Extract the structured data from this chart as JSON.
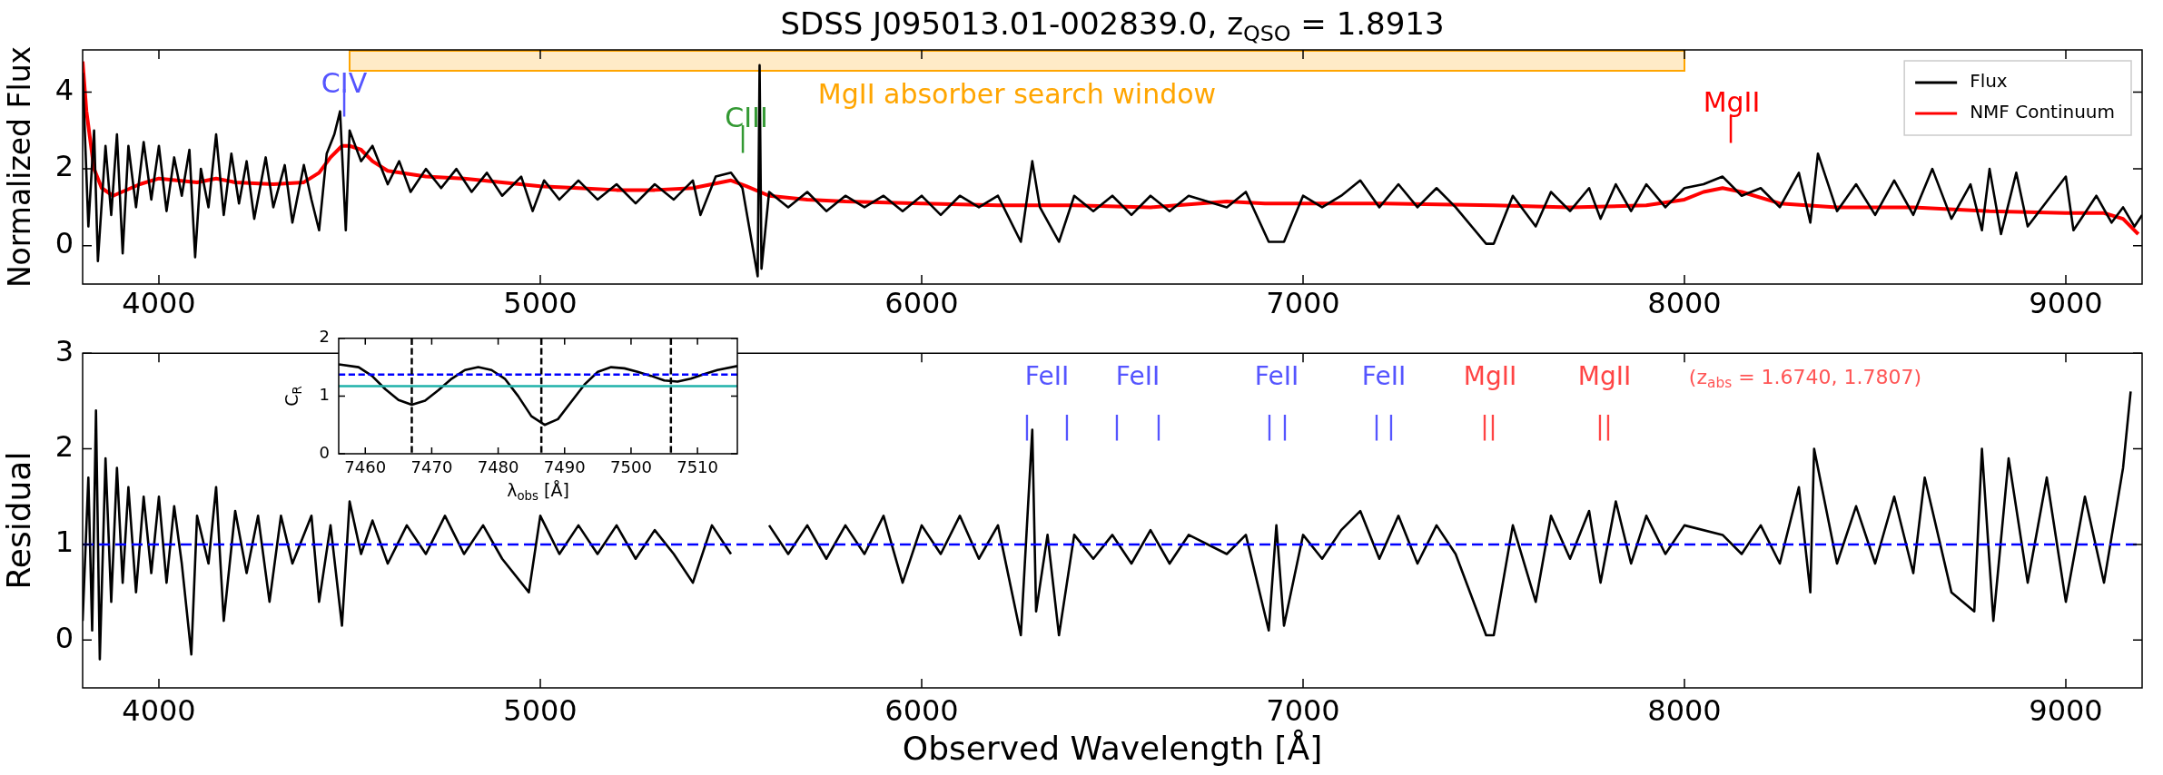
{
  "chart_data": [
    {
      "type": "line",
      "title": "SDSS J095013.01-002839.0, z$_{QSO}$ = 1.8913",
      "ylabel": "Normalized Flux",
      "xlim": [
        3800,
        9200
      ],
      "xticks": [
        4000,
        5000,
        6000,
        7000,
        8000,
        9000
      ],
      "ylim": [
        -1,
        5.1
      ],
      "yticks": [
        0,
        2,
        4
      ],
      "legend": "top right",
      "grid": false,
      "series": [
        {
          "name": "Flux",
          "color": "#000000",
          "x": [
            3800,
            3815,
            3830,
            3840,
            3860,
            3875,
            3890,
            3905,
            3920,
            3940,
            3960,
            3980,
            4000,
            4020,
            4040,
            4060,
            4080,
            4095,
            4110,
            4130,
            4150,
            4170,
            4190,
            4210,
            4230,
            4250,
            4280,
            4300,
            4330,
            4350,
            4380,
            4400,
            4420,
            4440,
            4460,
            4475,
            4490,
            4500,
            4530,
            4560,
            4600,
            4630,
            4660,
            4700,
            4740,
            4780,
            4820,
            4860,
            4900,
            4950,
            4980,
            5010,
            5050,
            5100,
            5150,
            5200,
            5250,
            5300,
            5350,
            5400,
            5420,
            5460,
            5500,
            5530,
            5570,
            5575,
            5580,
            5600,
            5650,
            5700,
            5750,
            5800,
            5850,
            5900,
            5950,
            6000,
            6050,
            6100,
            6150,
            6200,
            6260,
            6290,
            6310,
            6360,
            6400,
            6450,
            6500,
            6550,
            6600,
            6650,
            6700,
            6800,
            6850,
            6910,
            6950,
            7000,
            7050,
            7100,
            7150,
            7200,
            7250,
            7300,
            7350,
            7400,
            7480,
            7500,
            7550,
            7610,
            7650,
            7700,
            7750,
            7780,
            7820,
            7860,
            7900,
            7950,
            8000,
            8050,
            8100,
            8150,
            8200,
            8250,
            8300,
            8330,
            8350,
            8400,
            8450,
            8500,
            8550,
            8600,
            8650,
            8700,
            8750,
            8780,
            8800,
            8830,
            8870,
            8900,
            9000,
            9020,
            9080,
            9120,
            9150,
            9180,
            9200
          ],
          "values": [
            4.5,
            0.5,
            3.0,
            -0.4,
            2.6,
            0.8,
            2.9,
            -0.2,
            2.6,
            1.0,
            2.7,
            1.2,
            2.6,
            0.9,
            2.3,
            1.3,
            2.5,
            -0.3,
            2.0,
            1.0,
            2.9,
            0.8,
            2.4,
            1.1,
            2.2,
            0.7,
            2.3,
            1.0,
            2.1,
            0.6,
            2.1,
            1.2,
            0.4,
            2.4,
            2.9,
            3.5,
            0.4,
            3.0,
            2.2,
            2.6,
            1.6,
            2.2,
            1.4,
            2.0,
            1.5,
            2.0,
            1.4,
            1.9,
            1.3,
            1.8,
            0.9,
            1.7,
            1.2,
            1.7,
            1.2,
            1.6,
            1.1,
            1.6,
            1.2,
            1.7,
            0.8,
            1.8,
            1.9,
            1.5,
            -0.8,
            4.7,
            -0.6,
            1.4,
            1.0,
            1.4,
            0.9,
            1.3,
            1.0,
            1.3,
            0.9,
            1.3,
            0.8,
            1.3,
            1.0,
            1.3,
            0.1,
            2.2,
            1.0,
            0.1,
            1.3,
            0.9,
            1.3,
            0.8,
            1.3,
            0.9,
            1.3,
            1.0,
            1.4,
            0.1,
            0.1,
            1.3,
            1.0,
            1.3,
            1.7,
            1.0,
            1.6,
            1.0,
            1.5,
            1.0,
            0.05,
            0.05,
            1.3,
            0.5,
            1.4,
            0.9,
            1.5,
            0.7,
            1.6,
            0.9,
            1.6,
            1.0,
            1.5,
            1.6,
            1.8,
            1.3,
            1.5,
            1.0,
            1.9,
            0.6,
            2.4,
            0.9,
            1.6,
            0.8,
            1.7,
            0.8,
            2.0,
            0.7,
            1.6,
            0.4,
            2.0,
            0.3,
            1.9,
            0.5,
            1.8,
            0.4,
            1.3,
            0.6,
            1.0,
            0.5,
            0.8
          ]
        },
        {
          "name": "NMF Continuum",
          "color": "#ff0000",
          "x": [
            3800,
            3810,
            3830,
            3850,
            3880,
            3950,
            4000,
            4100,
            4150,
            4200,
            4300,
            4380,
            4420,
            4450,
            4480,
            4500,
            4530,
            4560,
            4600,
            4700,
            4800,
            4900,
            5000,
            5100,
            5200,
            5300,
            5400,
            5450,
            5500,
            5540,
            5600,
            5700,
            5800,
            6000,
            6200,
            6400,
            6600,
            6800,
            6900,
            7000,
            7200,
            7500,
            7700,
            7900,
            8000,
            8050,
            8100,
            8150,
            8250,
            8400,
            8600,
            8800,
            9000,
            9100,
            9150,
            9190
          ],
          "values": [
            4.8,
            3.5,
            2.0,
            1.5,
            1.3,
            1.6,
            1.75,
            1.65,
            1.75,
            1.65,
            1.6,
            1.65,
            1.9,
            2.3,
            2.6,
            2.6,
            2.5,
            2.2,
            1.95,
            1.8,
            1.75,
            1.65,
            1.55,
            1.5,
            1.45,
            1.45,
            1.5,
            1.6,
            1.7,
            1.55,
            1.3,
            1.2,
            1.15,
            1.1,
            1.05,
            1.05,
            1.0,
            1.15,
            1.1,
            1.1,
            1.1,
            1.05,
            1.0,
            1.05,
            1.2,
            1.4,
            1.5,
            1.4,
            1.1,
            1.0,
            1.0,
            0.9,
            0.85,
            0.85,
            0.7,
            0.3
          ]
        }
      ],
      "bands": [
        {
          "axis": "x",
          "from": 4500,
          "to": 8000,
          "label": "MgII absorber search window",
          "color": "#ffa500"
        }
      ],
      "annotations": [
        "CIV",
        "|",
        "CIII",
        "|",
        "MgII",
        "|"
      ]
    },
    {
      "type": "line",
      "xlabel": "Observed Wavelength [Å]",
      "ylabel": "Residual",
      "xlim": [
        3800,
        9200
      ],
      "xticks": [
        4000,
        5000,
        6000,
        7000,
        8000,
        9000
      ],
      "ylim": [
        -0.5,
        3
      ],
      "yticks": [
        0,
        1,
        2,
        3
      ],
      "grid": false,
      "series": [
        {
          "color": "#000000",
          "x": [
            3800,
            3815,
            3825,
            3835,
            3845,
            3860,
            3875,
            3890,
            3905,
            3920,
            3940,
            3960,
            3980,
            4000,
            4020,
            4040,
            4060,
            4085,
            4100,
            4130,
            4150,
            4170,
            4200,
            4230,
            4260,
            4290,
            4320,
            4350,
            4400,
            4420,
            4450,
            4480,
            4500,
            4530,
            4560,
            4600,
            4650,
            4700,
            4750,
            4800,
            4850,
            4900,
            4970,
            5000,
            5050,
            5100,
            5150,
            5200,
            5250,
            5300,
            5350,
            5400,
            5450,
            5500,
            5570,
            5575,
            5580,
            5600,
            5650,
            5700,
            5750,
            5800,
            5850,
            5900,
            5950,
            6000,
            6050,
            6100,
            6150,
            6200,
            6260,
            6290,
            6300,
            6330,
            6360,
            6400,
            6450,
            6500,
            6550,
            6600,
            6650,
            6700,
            6800,
            6850,
            6910,
            6930,
            6950,
            7000,
            7050,
            7100,
            7150,
            7200,
            7250,
            7300,
            7350,
            7400,
            7480,
            7500,
            7550,
            7610,
            7650,
            7700,
            7750,
            7780,
            7820,
            7860,
            7900,
            7950,
            8000,
            8100,
            8150,
            8200,
            8250,
            8300,
            8330,
            8340,
            8400,
            8450,
            8500,
            8550,
            8600,
            8630,
            8700,
            8760,
            8780,
            8810,
            8850,
            8900,
            8950,
            9000,
            9050,
            9100,
            9150,
            9170
          ],
          "values": [
            0.2,
            1.7,
            0.1,
            2.4,
            -0.2,
            1.9,
            0.4,
            1.8,
            0.6,
            1.6,
            0.5,
            1.5,
            0.7,
            1.5,
            0.6,
            1.4,
            0.8,
            -0.15,
            1.3,
            0.8,
            1.6,
            0.2,
            1.35,
            0.7,
            1.3,
            0.4,
            1.3,
            0.8,
            1.3,
            0.4,
            1.2,
            0.15,
            1.45,
            0.9,
            1.25,
            0.8,
            1.2,
            0.9,
            1.3,
            0.9,
            1.2,
            0.85,
            0.5,
            1.3,
            0.9,
            1.2,
            0.9,
            1.2,
            0.85,
            1.15,
            0.9,
            0.6,
            1.2,
            0.9,
            null,
            null,
            null,
            1.2,
            0.9,
            1.2,
            0.85,
            1.2,
            0.9,
            1.3,
            0.6,
            1.2,
            0.9,
            1.3,
            0.85,
            1.2,
            0.05,
            2.2,
            0.3,
            1.1,
            0.05,
            1.1,
            0.85,
            1.1,
            0.8,
            1.15,
            0.8,
            1.1,
            0.9,
            1.1,
            0.1,
            1.2,
            0.15,
            1.1,
            0.85,
            1.15,
            1.35,
            0.85,
            1.3,
            0.8,
            1.2,
            0.9,
            0.05,
            0.05,
            1.2,
            0.4,
            1.3,
            0.85,
            1.35,
            0.6,
            1.45,
            0.8,
            1.3,
            0.9,
            1.2,
            1.1,
            0.9,
            1.2,
            0.8,
            1.6,
            0.5,
            2.0,
            0.8,
            1.4,
            0.8,
            1.5,
            0.7,
            1.7,
            0.5,
            0.3,
            2.0,
            0.2,
            1.9,
            0.6,
            1.7,
            0.4,
            1.5,
            0.6,
            1.8,
            2.6
          ]
        }
      ],
      "ref_lines": [
        {
          "axis": "y",
          "value": 1,
          "color": "#0000ff",
          "line_style": "dashed"
        }
      ],
      "annotations": [
        "FeII",
        "|",
        "|",
        "FeII",
        "|",
        "|",
        "FeII",
        "|",
        "|",
        "FeII",
        "|",
        "|",
        "MgII",
        "|",
        "|",
        "MgII",
        "|",
        "|",
        "(z$_{abs}$ = 1.6740, 1.7807)"
      ]
    },
    {
      "type": "line",
      "xlabel": "λ$_{obs}$ [Å]",
      "ylabel": "C$_{R}$",
      "xlim": [
        7456,
        7516
      ],
      "xticks": [
        7460,
        7470,
        7480,
        7490,
        7500,
        7510
      ],
      "ylim": [
        0,
        2
      ],
      "yticks": [
        0,
        1,
        2
      ],
      "grid": false,
      "series": [
        {
          "color": "#000000",
          "x": [
            7456,
            7459,
            7461,
            7463,
            7465,
            7467,
            7469,
            7471,
            7473,
            7475,
            7477,
            7479,
            7481,
            7483,
            7485,
            7487,
            7489,
            7491,
            7493,
            7495,
            7497,
            7499,
            7501,
            7503,
            7505,
            7507,
            7509,
            7511,
            7513,
            7516
          ],
          "values": [
            1.55,
            1.5,
            1.35,
            1.12,
            0.93,
            0.85,
            0.92,
            1.1,
            1.3,
            1.45,
            1.5,
            1.45,
            1.3,
            1.0,
            0.65,
            0.5,
            0.6,
            0.9,
            1.2,
            1.42,
            1.5,
            1.48,
            1.42,
            1.35,
            1.27,
            1.25,
            1.3,
            1.38,
            1.45,
            1.52
          ]
        }
      ],
      "ref_lines": [
        {
          "axis": "y",
          "value": 1.37,
          "color": "#0000ff",
          "line_style": "dashed"
        },
        {
          "axis": "y",
          "value": 1.17,
          "color": "#20b2aa",
          "line_style": "solid"
        },
        {
          "axis": "x",
          "value": 7467,
          "color": "#000000",
          "line_style": "dashed"
        },
        {
          "axis": "x",
          "value": 7486.5,
          "color": "#000000",
          "line_style": "dashed"
        },
        {
          "axis": "x",
          "value": 7506,
          "color": "#000000",
          "line_style": "dashed"
        }
      ]
    }
  ]
}
